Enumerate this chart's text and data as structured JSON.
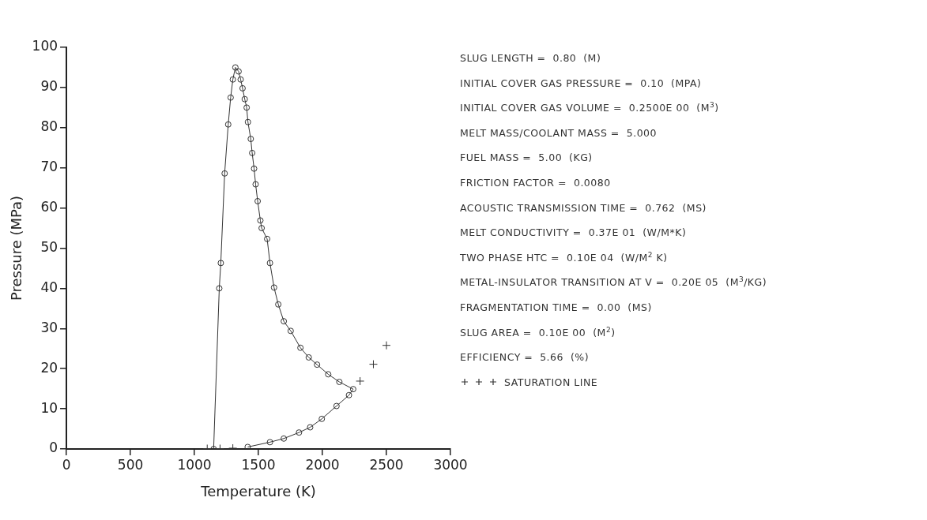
{
  "chart_data": {
    "type": "line",
    "xlabel": "Temperature (K)",
    "ylabel": "Pressure (MPa)",
    "xlim": [
      0,
      3000
    ],
    "xticks": [
      0,
      500,
      1000,
      1500,
      2000,
      2500,
      3000
    ],
    "ylim": [
      0,
      100
    ],
    "yticks": [
      0,
      10,
      20,
      30,
      40,
      50,
      60,
      70,
      80,
      90,
      100
    ],
    "grid": false,
    "legend": "right",
    "marker": "circle",
    "annotations": [
      "SLUG LENGTH =  0.80  (M)",
      "INITIAL COVER GAS PRESSURE =  0.10  (MPA)",
      "INITIAL COVER GAS VOLUME =  0.2500E 00  (M$^{3}$)",
      "MELT MASS/COOLANT MASS =  5.000",
      "FUEL MASS =  5.00  (KG)",
      "FRICTION FACTOR =  0.0080",
      "ACOUSTIC TRANSMISSION TIME =  0.762  (MS)",
      "MELT CONDUCTIVITY =  0.37E 01  (W/M*K)",
      "TWO PHASE HTC =  0.10E 04  (W/M$^{2}$ K)",
      "METAL-INSULATOR TRANSITION AT V =  0.20E 05  (M$^{3}$/KG)",
      "FRAGMENTATION TIME =  0.00  (MS)",
      "SLUG AREA =  0.10E 00  (M$^{2}$)",
      "EFFICIENCY =  5.66  (%)"
    ],
    "series": [
      {
        "color": "#333333",
        "x": [
          1150,
          1194,
          1206,
          1236,
          1264,
          1283,
          1300,
          1320,
          1345,
          1361,
          1376,
          1393,
          1408,
          1418,
          1440,
          1451,
          1466,
          1478,
          1494,
          1515,
          1525,
          1568,
          1590,
          1622,
          1655,
          1698,
          1752,
          1828,
          1893,
          1958,
          2045,
          2132,
          2240,
          2207,
          2110,
          1995,
          1904,
          1817,
          1698,
          1590,
          1416
        ],
        "values": [
          0,
          40,
          46.3,
          68.6,
          80.8,
          87.5,
          92,
          95,
          94,
          92,
          89.8,
          87.1,
          85,
          81.4,
          77.2,
          73.7,
          69.8,
          65.9,
          61.7,
          56.9,
          55,
          52.3,
          46.3,
          40.2,
          36,
          31.8,
          29.4,
          25.2,
          22.8,
          21,
          18.6,
          16.7,
          14.9,
          13.4,
          10.7,
          7.5,
          5.4,
          4.1,
          2.6,
          1.7,
          0.5
        ]
      },
      {
        "type": "scatter",
        "name": "SATURATION LINE",
        "color": "#333333",
        "marker": "cross",
        "x": [
          1100,
          1200,
          1300,
          2294,
          2398,
          2500
        ],
        "values": [
          0.1,
          0.1,
          0.2,
          16.9,
          21.1,
          25.8
        ]
      }
    ]
  }
}
